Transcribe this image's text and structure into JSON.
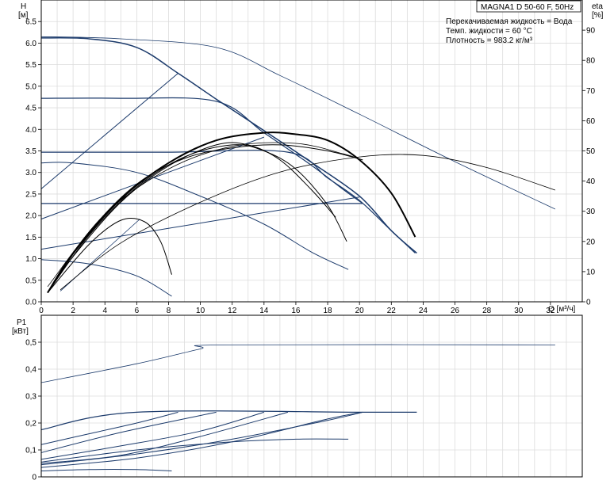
{
  "chart_data": [
    {
      "type": "line",
      "title": "MAGNA1 D 50-60 F, 50Hz",
      "info_lines": [
        "Перекачиваемая жидкость = Вода",
        "Темп. жидкости = 60 °C",
        "Плотность = 983.2 кг/м³"
      ],
      "ylabel": "H",
      "yunit": "[м]",
      "y2label": "eta",
      "y2unit": "[%]",
      "xlabel": "Q [м³/ч]",
      "xlim": [
        0,
        34
      ],
      "ylim": [
        0,
        7
      ],
      "y2lim": [
        0,
        100
      ],
      "x_ticks": [
        "0",
        "2",
        "4",
        "6",
        "8",
        "10",
        "12",
        "14",
        "16",
        "18",
        "20",
        "22",
        "24",
        "26",
        "28",
        "30",
        "32"
      ],
      "y_ticks": [
        "0.0",
        "0.5",
        "1.0",
        "1.5",
        "2.0",
        "2.5",
        "3.0",
        "3.5",
        "4.0",
        "4.5",
        "5.0",
        "5.5",
        "6.0",
        "6.5"
      ],
      "y2_ticks": [
        "0",
        "10",
        "20",
        "30",
        "40",
        "50",
        "60",
        "70",
        "80",
        "90"
      ],
      "grid": true,
      "series": [
        {
          "kind": "head",
          "color": "#1b3a6b",
          "width": 1.5,
          "x": [
            0,
            3,
            6,
            8.6,
            11,
            14,
            17,
            20,
            22,
            23.6
          ],
          "y": [
            6.12,
            6.1,
            5.9,
            5.3,
            4.7,
            3.97,
            3.23,
            2.45,
            1.65,
            1.13
          ]
        },
        {
          "kind": "head",
          "color": "#1b3a6b",
          "width": 1.2,
          "x": [
            0,
            5,
            11,
            14,
            17,
            19,
            20.2
          ],
          "y": [
            4.72,
            4.72,
            4.65,
            3.92,
            3.16,
            2.6,
            2.28
          ]
        },
        {
          "kind": "head",
          "color": "#1b3a6b",
          "width": 1.2,
          "x": [
            0,
            8,
            15.5,
            18,
            20,
            22,
            23.5
          ],
          "y": [
            3.47,
            3.47,
            3.47,
            2.87,
            2.35,
            1.65,
            1.13
          ]
        },
        {
          "kind": "head",
          "color": "#1b3a6b",
          "width": 1.2,
          "x": [
            0,
            10,
            20.2
          ],
          "y": [
            2.28,
            2.28,
            2.28
          ]
        },
        {
          "kind": "head",
          "color": "#1b3a6b",
          "width": 1.0,
          "x": [
            0,
            2,
            6,
            10,
            14,
            17,
            19.3
          ],
          "y": [
            3.22,
            3.22,
            3.0,
            2.45,
            1.8,
            1.15,
            0.75
          ]
        },
        {
          "kind": "head",
          "color": "#1b3a6b",
          "width": 1.0,
          "x": [
            0,
            3,
            6,
            8.2
          ],
          "y": [
            0.98,
            0.88,
            0.6,
            0.13
          ]
        },
        {
          "kind": "head",
          "color": "#1b3a6b",
          "width": 0.8,
          "x": [
            0,
            5,
            11,
            15,
            20,
            26,
            32.3
          ],
          "y": [
            6.15,
            6.1,
            5.9,
            5.25,
            4.35,
            3.25,
            2.15
          ]
        },
        {
          "kind": "system",
          "color": "#1b3a6b",
          "width": 1.0,
          "x": [
            0,
            8.6
          ],
          "y": [
            2.62,
            5.3
          ]
        },
        {
          "kind": "system",
          "color": "#1b3a6b",
          "width": 1.0,
          "x": [
            0,
            14.0
          ],
          "y": [
            1.92,
            3.82
          ]
        },
        {
          "kind": "system",
          "color": "#1b3a6b",
          "width": 1.0,
          "x": [
            0,
            20.0
          ],
          "y": [
            1.22,
            2.43
          ]
        },
        {
          "kind": "system",
          "color": "#1b3a6b",
          "width": 0.8,
          "x": [
            1.2,
            6.2
          ],
          "y": [
            0.25,
            1.92
          ]
        },
        {
          "kind": "eta",
          "color": "#000000",
          "width": 2.0,
          "x": [
            0.4,
            2,
            5,
            8,
            11,
            14,
            16,
            18,
            20,
            22,
            23.5
          ],
          "y": [
            3,
            16,
            34,
            46,
            53.5,
            56,
            55.5,
            53.5,
            47,
            36,
            21.5
          ]
        },
        {
          "kind": "eta",
          "color": "#000000",
          "width": 1.0,
          "x": [
            0.4,
            3,
            6,
            9,
            12,
            14,
            16,
            18,
            19.2
          ],
          "y": [
            3,
            22,
            38,
            48,
            52,
            50,
            44,
            32,
            20
          ]
        },
        {
          "kind": "eta",
          "color": "#000000",
          "width": 1.0,
          "x": [
            0.4,
            2,
            5,
            8,
            11,
            13,
            15,
            17,
            18.5
          ],
          "y": [
            3,
            15,
            33,
            45,
            52,
            52,
            47,
            37,
            28
          ]
        },
        {
          "kind": "eta",
          "color": "#000000",
          "width": 1.0,
          "x": [
            0.4,
            3,
            5,
            6.5,
            7.5,
            8.2
          ],
          "y": [
            3,
            19,
            27,
            26.5,
            20,
            9
          ]
        },
        {
          "kind": "eta",
          "color": "#000000",
          "width": 1.0,
          "x": [
            0.4,
            3,
            6,
            9,
            12,
            15,
            18,
            20.2
          ],
          "y": [
            3,
            23,
            39,
            47.5,
            51,
            52,
            50,
            47
          ]
        },
        {
          "kind": "eta",
          "color": "#000000",
          "width": 0.8,
          "x": [
            0.4,
            4,
            8,
            12,
            16,
            19,
            20.2
          ],
          "y": [
            5,
            29,
            44,
            51.5,
            52.5,
            49,
            47
          ]
        },
        {
          "kind": "eta",
          "color": "#000000",
          "width": 0.8,
          "x": [
            1.2,
            5,
            10,
            15,
            20,
            24,
            28,
            32.3
          ],
          "y": [
            4,
            19.5,
            33,
            43,
            48,
            48.5,
            44.5,
            37
          ]
        }
      ]
    },
    {
      "type": "line",
      "ylabel": "P1",
      "yunit": "[кВт]",
      "xlim": [
        0,
        34
      ],
      "ylim": [
        0,
        0.6
      ],
      "y_ticks": [
        "0",
        "0,1",
        "0,2",
        "0,3",
        "0,4",
        "0,5"
      ],
      "grid": true,
      "series": [
        {
          "color": "#1b3a6b",
          "width": 0.8,
          "x": [
            0,
            6,
            10,
            11.5,
            32.3
          ],
          "y": [
            0.35,
            0.42,
            0.475,
            0.49,
            0.49
          ]
        },
        {
          "color": "#1b3a6b",
          "width": 1.2,
          "x": [
            0,
            6,
            20.2,
            23.6
          ],
          "y": [
            0.175,
            0.24,
            0.24,
            0.24
          ]
        },
        {
          "color": "#1b3a6b",
          "width": 1.0,
          "x": [
            0,
            3,
            6,
            8.6
          ],
          "y": [
            0.12,
            0.16,
            0.2,
            0.24
          ]
        },
        {
          "color": "#1b3a6b",
          "width": 1.0,
          "x": [
            0,
            5,
            11
          ],
          "y": [
            0.09,
            0.165,
            0.24
          ]
        },
        {
          "color": "#1b3a6b",
          "width": 1.0,
          "x": [
            0,
            5,
            10,
            14
          ],
          "y": [
            0.065,
            0.115,
            0.17,
            0.24
          ]
        },
        {
          "color": "#1b3a6b",
          "width": 1.0,
          "x": [
            0,
            5,
            10,
            15.5
          ],
          "y": [
            0.05,
            0.08,
            0.15,
            0.24
          ]
        },
        {
          "color": "#1b3a6b",
          "width": 1.0,
          "x": [
            0,
            6,
            12,
            18,
            20.2
          ],
          "y": [
            0.035,
            0.07,
            0.13,
            0.215,
            0.24
          ]
        },
        {
          "color": "#1b3a6b",
          "width": 1.0,
          "x": [
            0,
            6,
            12,
            18,
            20.2
          ],
          "y": [
            0.045,
            0.085,
            0.14,
            0.21,
            0.24
          ]
        },
        {
          "color": "#1b3a6b",
          "width": 1.0,
          "x": [
            0,
            6,
            12,
            16,
            19.3
          ],
          "y": [
            0.055,
            0.1,
            0.13,
            0.14,
            0.14
          ]
        },
        {
          "color": "#1b3a6b",
          "width": 1.0,
          "x": [
            0,
            3,
            6,
            8.2
          ],
          "y": [
            0.022,
            0.027,
            0.027,
            0.022
          ]
        }
      ]
    }
  ]
}
